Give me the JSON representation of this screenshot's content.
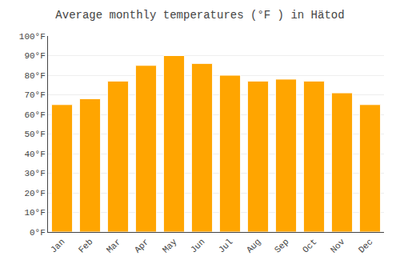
{
  "chart_data": {
    "type": "bar",
    "title": "Average monthly temperatures (°F ) in Hätod",
    "categories": [
      "Jan",
      "Feb",
      "Mar",
      "Apr",
      "May",
      "Jun",
      "Jul",
      "Aug",
      "Sep",
      "Oct",
      "Nov",
      "Dec"
    ],
    "values": [
      65,
      68,
      77,
      85,
      90,
      86,
      80,
      77,
      78,
      77,
      71,
      65
    ],
    "color": "#FFA500",
    "ylim": [
      0,
      100
    ],
    "yticks": [
      {
        "value": 0,
        "label": "0°F"
      },
      {
        "value": 10,
        "label": "10°F"
      },
      {
        "value": 20,
        "label": "20°F"
      },
      {
        "value": 30,
        "label": "30°F"
      },
      {
        "value": 40,
        "label": "40°F"
      },
      {
        "value": 50,
        "label": "50°F"
      },
      {
        "value": 60,
        "label": "60°F"
      },
      {
        "value": 70,
        "label": "70°F"
      },
      {
        "value": 80,
        "label": "80°F"
      },
      {
        "value": 90,
        "label": "90°F"
      },
      {
        "value": 100,
        "label": "100°F"
      }
    ],
    "grid": true
  }
}
